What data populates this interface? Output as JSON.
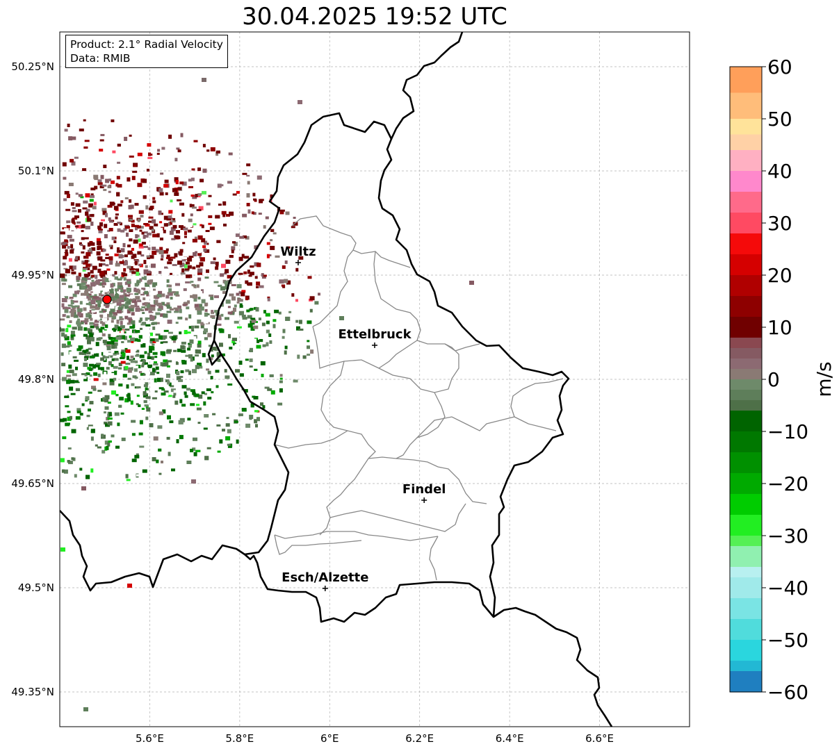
{
  "title": "30.04.2025 19:52 UTC",
  "info": {
    "product": "Product: 2.1° Radial Velocity",
    "data": "Data: RMIB"
  },
  "axes": {
    "lon_range": [
      5.4,
      6.8
    ],
    "lat_range": [
      49.3,
      50.3
    ],
    "x_ticks": [
      {
        "value": 5.6,
        "label": "5.6°E"
      },
      {
        "value": 5.8,
        "label": "5.8°E"
      },
      {
        "value": 6.0,
        "label": "6°E"
      },
      {
        "value": 6.2,
        "label": "6.2°E"
      },
      {
        "value": 6.4,
        "label": "6.4°E"
      },
      {
        "value": 6.6,
        "label": "6.6°E"
      }
    ],
    "y_ticks": [
      {
        "value": 50.25,
        "label": "50.25°N"
      },
      {
        "value": 50.1,
        "label": "50.1°N"
      },
      {
        "value": 49.95,
        "label": "49.95°N"
      },
      {
        "value": 49.8,
        "label": "49.8°N"
      },
      {
        "value": 49.65,
        "label": "49.65°N"
      },
      {
        "value": 49.5,
        "label": "49.5°N"
      },
      {
        "value": 49.35,
        "label": "49.35°N"
      }
    ]
  },
  "cities": [
    {
      "name": "Wiltz",
      "lon": 5.93,
      "lat": 49.968
    },
    {
      "name": "Ettelbruck",
      "lon": 6.1,
      "lat": 49.849
    },
    {
      "name": "Findel",
      "lon": 6.21,
      "lat": 49.626
    },
    {
      "name": "Esch/Alzette",
      "lon": 5.99,
      "lat": 49.499
    }
  ],
  "radar_site": {
    "lon": 5.505,
    "lat": 49.915
  },
  "colorbar": {
    "min": -60,
    "max": 60,
    "unit": "m/s",
    "ticks": [
      {
        "value": 60,
        "label": "60"
      },
      {
        "value": 50,
        "label": "50"
      },
      {
        "value": 40,
        "label": "40"
      },
      {
        "value": 30,
        "label": "30"
      },
      {
        "value": 20,
        "label": "20"
      },
      {
        "value": 10,
        "label": "10"
      },
      {
        "value": 0,
        "label": "0"
      },
      {
        "value": -10,
        "label": "−10"
      },
      {
        "value": -20,
        "label": "−20"
      },
      {
        "value": -30,
        "label": "−30"
      },
      {
        "value": -40,
        "label": "−40"
      },
      {
        "value": -50,
        "label": "−50"
      },
      {
        "value": -60,
        "label": "−60"
      }
    ],
    "segments": [
      {
        "from": 55,
        "to": 60,
        "color": "#ff9f5a"
      },
      {
        "from": 50,
        "to": 55,
        "color": "#ffbd7a"
      },
      {
        "from": 47,
        "to": 50,
        "color": "#ffe39a"
      },
      {
        "from": 44,
        "to": 47,
        "color": "#ffd1a6"
      },
      {
        "from": 40,
        "to": 44,
        "color": "#ffb0c2"
      },
      {
        "from": 36,
        "to": 40,
        "color": "#ff88cc"
      },
      {
        "from": 32,
        "to": 36,
        "color": "#ff6a8a"
      },
      {
        "from": 28,
        "to": 32,
        "color": "#ff4a62"
      },
      {
        "from": 24,
        "to": 28,
        "color": "#f50a0a"
      },
      {
        "from": 20,
        "to": 24,
        "color": "#d50000"
      },
      {
        "from": 16,
        "to": 20,
        "color": "#b00000"
      },
      {
        "from": 12,
        "to": 16,
        "color": "#8e0000"
      },
      {
        "from": 8,
        "to": 12,
        "color": "#700000"
      },
      {
        "from": 6,
        "to": 8,
        "color": "#8a4850"
      },
      {
        "from": 4,
        "to": 6,
        "color": "#855a62"
      },
      {
        "from": 2,
        "to": 4,
        "color": "#8c6a72"
      },
      {
        "from": 0,
        "to": 2,
        "color": "#8a7a74"
      },
      {
        "from": -2,
        "to": 0,
        "color": "#6e8a6a"
      },
      {
        "from": -4,
        "to": -2,
        "color": "#5e7e5a"
      },
      {
        "from": -6,
        "to": -4,
        "color": "#4e7048"
      },
      {
        "from": -10,
        "to": -6,
        "color": "#006400"
      },
      {
        "from": -14,
        "to": -10,
        "color": "#007800"
      },
      {
        "from": -18,
        "to": -14,
        "color": "#009000"
      },
      {
        "from": -22,
        "to": -18,
        "color": "#00aa00"
      },
      {
        "from": -26,
        "to": -22,
        "color": "#00cc00"
      },
      {
        "from": -30,
        "to": -26,
        "color": "#22ee22"
      },
      {
        "from": -32,
        "to": -30,
        "color": "#55f055"
      },
      {
        "from": -36,
        "to": -32,
        "color": "#90f0b0"
      },
      {
        "from": -38,
        "to": -36,
        "color": "#b8f0f0"
      },
      {
        "from": -42,
        "to": -38,
        "color": "#a0eaea"
      },
      {
        "from": -46,
        "to": -42,
        "color": "#7ae4e4"
      },
      {
        "from": -50,
        "to": -46,
        "color": "#50dcdc"
      },
      {
        "from": -54,
        "to": -50,
        "color": "#2ad6de"
      },
      {
        "from": -56,
        "to": -54,
        "color": "#22b8d4"
      },
      {
        "from": -60,
        "to": -56,
        "color": "#1f7fc0"
      }
    ]
  },
  "colors": {
    "border": "#000000",
    "canton": "#888888",
    "grid": "#b0b0b0",
    "radar_site": "#ff0000"
  }
}
